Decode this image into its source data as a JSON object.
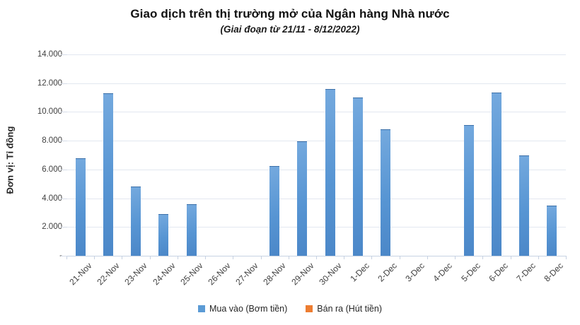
{
  "chart_data": {
    "type": "bar",
    "title": "Giao dịch trên thị trường mở của Ngân hàng Nhà nước",
    "subtitle": "(Giai đoạn từ 21/11 - 8/12/2022)",
    "xlabel": "",
    "ylabel": "Đơn vị: Tỉ đồng",
    "ylim": [
      0,
      14000
    ],
    "grid": true,
    "legend_position": "bottom",
    "yticks": [
      {
        "value": 14000,
        "label": "14.000"
      },
      {
        "value": 12000,
        "label": "12.000"
      },
      {
        "value": 10000,
        "label": "10.000"
      },
      {
        "value": 8000,
        "label": "8.000"
      },
      {
        "value": 6000,
        "label": "6.000"
      },
      {
        "value": 4000,
        "label": "4.000"
      },
      {
        "value": 2000,
        "label": "2.000"
      },
      {
        "value": 0,
        "label": "-"
      }
    ],
    "categories": [
      "21-Nov",
      "22-Nov",
      "23-Nov",
      "24-Nov",
      "25-Nov",
      "26-Nov",
      "27-Nov",
      "28-Nov",
      "29-Nov",
      "30-Nov",
      "1-Dec",
      "2-Dec",
      "3-Dec",
      "4-Dec",
      "5-Dec",
      "6-Dec",
      "7-Dec",
      "8-Dec"
    ],
    "series": [
      {
        "name": "Mua vào (Bơm tiền)",
        "color": "#5B9BD5",
        "values": [
          6800,
          11300,
          4800,
          2900,
          3600,
          0,
          0,
          6250,
          7950,
          11600,
          11000,
          8800,
          0,
          0,
          9100,
          11350,
          7000,
          3500
        ]
      },
      {
        "name": "Bán ra (Hút tiền)",
        "color": "#ED7D31",
        "values": [
          0,
          0,
          0,
          0,
          0,
          0,
          0,
          0,
          0,
          0,
          0,
          0,
          0,
          0,
          0,
          0,
          0,
          0
        ]
      }
    ]
  },
  "colors": {
    "bar_blue": "#5B9BD5",
    "bar_orange": "#ED7D31",
    "gridline": "#e2e7f0",
    "axis_line": "#c7d2e2",
    "tick_text": "#3f3f3f",
    "title_text": "#111111"
  }
}
